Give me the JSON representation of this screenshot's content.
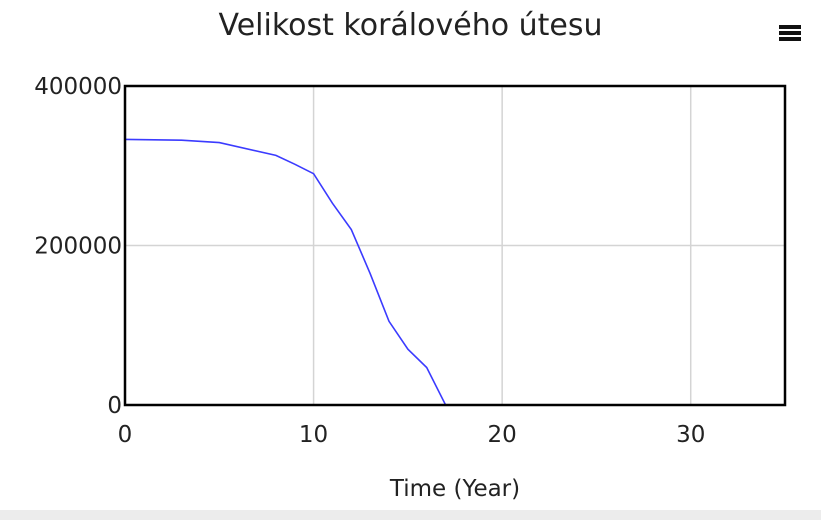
{
  "chart_data": {
    "type": "line",
    "title": "Velikost korálového útesu",
    "xlabel": "Time (Year)",
    "ylabel": "",
    "xlim": [
      0,
      35
    ],
    "ylim": [
      0,
      400000
    ],
    "x_ticks": [
      0,
      10,
      20,
      30
    ],
    "y_ticks": [
      0,
      200000,
      400000
    ],
    "x_tick_labels": [
      "0",
      "10",
      "20",
      "30"
    ],
    "y_tick_labels": [
      "0",
      "200000",
      "400000"
    ],
    "grid": true,
    "series": [
      {
        "color": "#3b3bff",
        "x": [
          0,
          3,
          5,
          8,
          9,
          10,
          11,
          12,
          13,
          14,
          15,
          16,
          17,
          18,
          20,
          25,
          30,
          35
        ],
        "y": [
          333000,
          332000,
          329000,
          313000,
          302000,
          290000,
          253000,
          220000,
          165000,
          105000,
          70000,
          47000,
          0,
          0,
          0,
          0,
          0,
          0
        ]
      }
    ]
  },
  "menu_icon": "hamburger-menu-icon"
}
